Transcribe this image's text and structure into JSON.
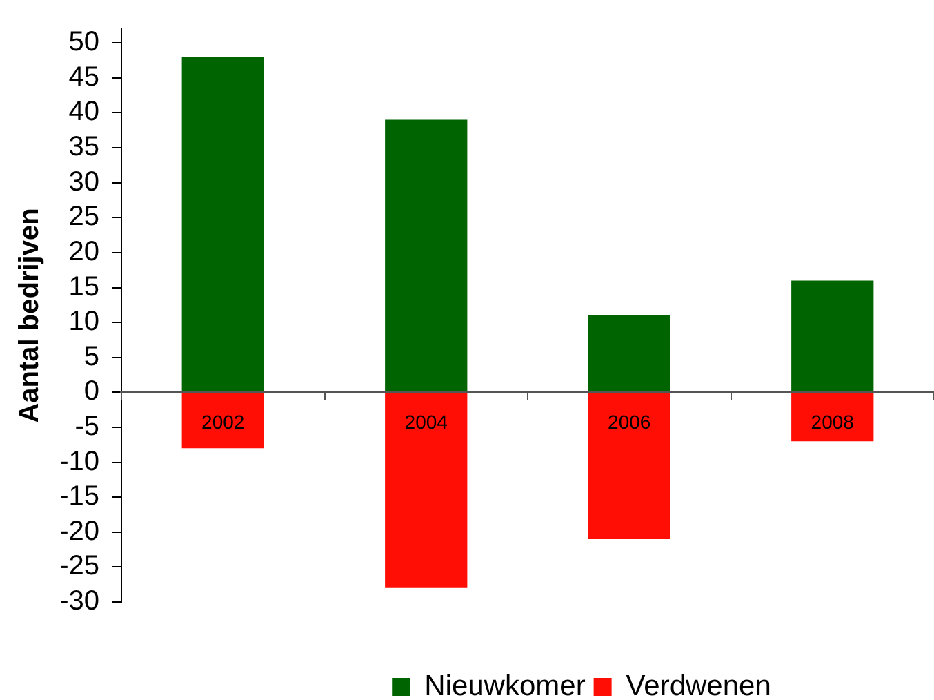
{
  "chart_data": {
    "type": "bar",
    "ylabel": "Aantal bedrijven",
    "categories": [
      "2002",
      "2004",
      "2006",
      "2008"
    ],
    "series": [
      {
        "name": "Nieuwkomer",
        "color": "#006400",
        "values": [
          48,
          39,
          11,
          16
        ]
      },
      {
        "name": "Verdwenen",
        "color": "#ff0e06",
        "values": [
          -8,
          -28,
          -21,
          -7
        ]
      }
    ],
    "stacked": true,
    "ylim": [
      -30,
      52
    ],
    "yticks": [
      -30,
      -25,
      -20,
      -15,
      -10,
      -5,
      0,
      5,
      10,
      15,
      20,
      25,
      30,
      35,
      40,
      45,
      50
    ],
    "grid": false,
    "legend": "bottom"
  }
}
